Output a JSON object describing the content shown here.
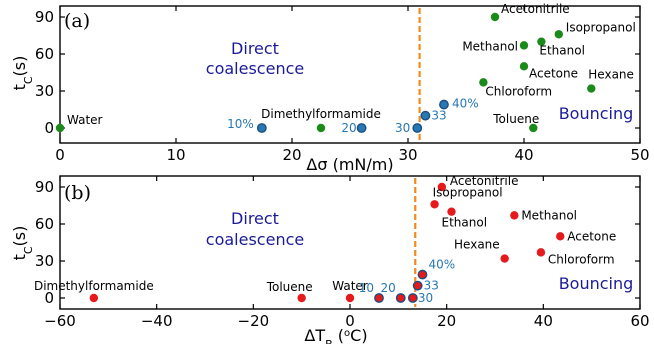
{
  "chart_data": [
    {
      "type": "scatter",
      "panel_label": "(a)",
      "xlabel": "Δσ (mN/m)",
      "ylabel": "t_C(s)",
      "xlim": [
        0,
        50
      ],
      "ylim": [
        0,
        90
      ],
      "x_ticks": [
        "0",
        "10",
        "20",
        "30",
        "40",
        "50"
      ],
      "y_ticks": [
        "0",
        "30",
        "60",
        "90"
      ],
      "grid": false,
      "threshold_x": 31,
      "region_labels": {
        "left": [
          "Direct",
          "coalescence"
        ],
        "right": "Bouncing"
      },
      "colors": {
        "liquids": "#1a8a1a",
        "mixtures": "#2878b4",
        "threshold": "#f08c1e",
        "region_text": "#1b1b9a"
      },
      "series": [
        {
          "points": [
            {
              "label": "Water",
              "x": 0,
              "y": 0
            },
            {
              "label": "Dimethylformamide",
              "x": 22.5,
              "y": 0
            },
            {
              "label": "Toluene",
              "x": 40.8,
              "y": 0
            },
            {
              "label": "Chloroform",
              "x": 36.5,
              "y": 37
            },
            {
              "label": "Acetone",
              "x": 40,
              "y": 50
            },
            {
              "label": "Methanol",
              "x": 40,
              "y": 67
            },
            {
              "label": "Ethanol",
              "x": 41.5,
              "y": 70
            },
            {
              "label": "Isopropanol",
              "x": 43,
              "y": 76
            },
            {
              "label": "Acetonitrile",
              "x": 37.5,
              "y": 90
            },
            {
              "label": "Hexane",
              "x": 45.8,
              "y": 32
            }
          ]
        },
        {
          "points": [
            {
              "label": "10%",
              "x": 17.4,
              "y": 0
            },
            {
              "label": "20",
              "x": 26,
              "y": 0
            },
            {
              "label": "30",
              "x": 30.8,
              "y": 0
            },
            {
              "label": "33",
              "x": 31.5,
              "y": 10
            },
            {
              "label": "40%",
              "x": 33.1,
              "y": 19
            }
          ]
        }
      ]
    },
    {
      "type": "scatter",
      "panel_label": "(b)",
      "xlabel": "ΔT_B (°C)",
      "ylabel": "t_C(s)",
      "xlim": [
        -60,
        60
      ],
      "ylim": [
        0,
        90
      ],
      "x_ticks": [
        "−60",
        "−40",
        "−20",
        "0",
        "20",
        "40",
        "60"
      ],
      "y_ticks": [
        "0",
        "30",
        "60",
        "90"
      ],
      "grid": false,
      "threshold_x": 13.5,
      "region_labels": {
        "left": [
          "Direct",
          "coalescence"
        ],
        "right": "Bouncing"
      },
      "colors": {
        "points": "#e41a1c",
        "mixture_labels": "#2878b4",
        "threshold": "#f08c1e",
        "region_text": "#1b1b9a"
      },
      "series": [
        {
          "points": [
            {
              "label": "Dimethylformamide",
              "x": -53,
              "y": 0
            },
            {
              "label": "Toluene",
              "x": -10,
              "y": 0
            },
            {
              "label": "Water",
              "x": 0,
              "y": 0
            },
            {
              "label": "Acetonitrile",
              "x": 19,
              "y": 90
            },
            {
              "label": "Isopropanol",
              "x": 17.5,
              "y": 76
            },
            {
              "label": "Ethanol",
              "x": 21,
              "y": 70
            },
            {
              "label": "Methanol",
              "x": 34,
              "y": 67
            },
            {
              "label": "Acetone",
              "x": 43.5,
              "y": 50
            },
            {
              "label": "Chloroform",
              "x": 39.5,
              "y": 37
            },
            {
              "label": "Hexane",
              "x": 32,
              "y": 32
            }
          ]
        },
        {
          "points": [
            {
              "label": "10",
              "x": 6,
              "y": 0
            },
            {
              "label": "20",
              "x": 10.5,
              "y": 0
            },
            {
              "label": "30",
              "x": 13,
              "y": 0
            },
            {
              "label": "33",
              "x": 14,
              "y": 10
            },
            {
              "label": "40%",
              "x": 15,
              "y": 19
            }
          ]
        }
      ]
    }
  ]
}
